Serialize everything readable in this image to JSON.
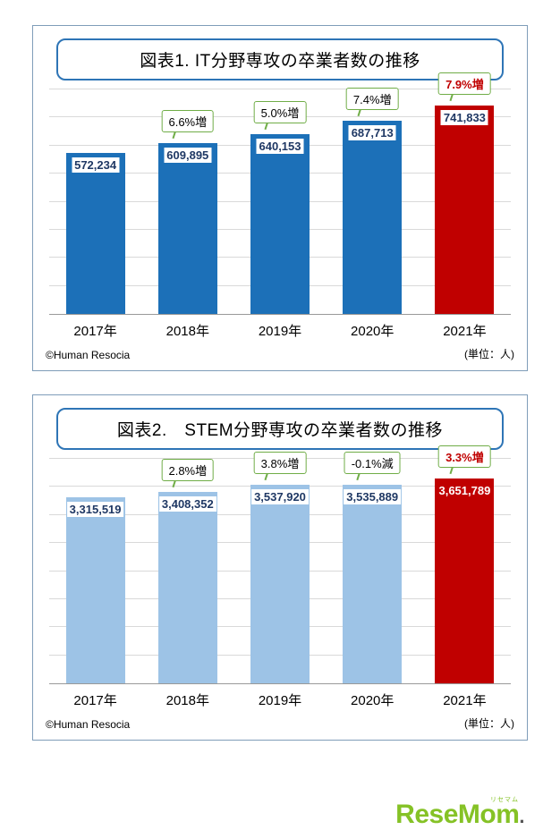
{
  "logo": {
    "text": "ReseMom",
    "kana": "リセマム",
    "dot": "."
  },
  "chart_data": [
    {
      "type": "bar",
      "title": "図表1. IT分野専攻の卒業者数の推移",
      "categories": [
        "2017年",
        "2018年",
        "2019年",
        "2020年",
        "2021年"
      ],
      "values": [
        572234,
        609895,
        640153,
        687713,
        741833
      ],
      "value_labels": [
        "572,234",
        "609,895",
        "640,153",
        "687,713",
        "741,833"
      ],
      "pct_labels": [
        null,
        "6.6%増",
        "5.0%増",
        "7.4%増",
        "7.9%増"
      ],
      "highlight_index": 4,
      "highlight_value_style": "boxed",
      "ylim": [
        0,
        800000
      ],
      "gridline_count": 8,
      "grid": "horizontal",
      "legend": "none",
      "xlabel": "",
      "ylabel": "",
      "bar_color": "#1c70b8",
      "highlight_color": "#c00000",
      "callout_border_color": "#70ad47",
      "value_text_color": "#1f3864",
      "unit_label": "(単位：人)",
      "copyright": "©Human Resocia"
    },
    {
      "type": "bar",
      "title": "図表2.　STEM分野専攻の卒業者数の推移",
      "categories": [
        "2017年",
        "2018年",
        "2019年",
        "2020年",
        "2021年"
      ],
      "values": [
        3315519,
        3408352,
        3537920,
        3535889,
        3651789
      ],
      "value_labels": [
        "3,315,519",
        "3,408,352",
        "3,537,920",
        "3,535,889",
        "3,651,789"
      ],
      "pct_labels": [
        null,
        "2.8%増",
        "3.8%増",
        "-0.1%減",
        "3.3%増"
      ],
      "highlight_index": 4,
      "highlight_value_style": "on-bar",
      "ylim": [
        0,
        4000000
      ],
      "gridline_count": 8,
      "grid": "horizontal",
      "legend": "none",
      "xlabel": "",
      "ylabel": "",
      "bar_color": "#9dc3e6",
      "highlight_color": "#c00000",
      "callout_border_color": "#70ad47",
      "value_text_color": "#1f3864",
      "unit_label": "(単位：人)",
      "copyright": "©Human Resocia"
    }
  ]
}
